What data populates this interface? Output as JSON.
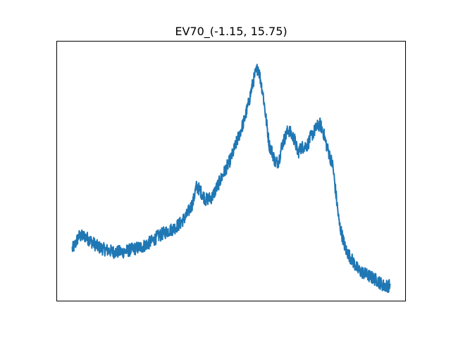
{
  "chart_data": {
    "type": "line",
    "title": "EV70_(-1.15, 15.75)",
    "xlabel": "",
    "ylabel": "",
    "xticks_visible": false,
    "yticks_visible": false,
    "grid": false,
    "legend": "none",
    "xlim": [
      -0.05,
      1.05
    ],
    "ylim": [
      0.0,
      1.0
    ],
    "colors": {
      "series": "#1f77b4",
      "frame": "#000000",
      "background": "#ffffff"
    },
    "series": [
      {
        "noise_amplitude": 0.025,
        "x": [
          0.0,
          0.01,
          0.02,
          0.04,
          0.06,
          0.08,
          0.1,
          0.13,
          0.16,
          0.19,
          0.22,
          0.25,
          0.27,
          0.3,
          0.32,
          0.34,
          0.36,
          0.38,
          0.39,
          0.4,
          0.42,
          0.44,
          0.46,
          0.48,
          0.5,
          0.52,
          0.54,
          0.555,
          0.565,
          0.575,
          0.585,
          0.6,
          0.62,
          0.63,
          0.64,
          0.65,
          0.66,
          0.68,
          0.7,
          0.71,
          0.72,
          0.74,
          0.75,
          0.77,
          0.78,
          0.79,
          0.8,
          0.82,
          0.84,
          0.86,
          0.88,
          0.9,
          0.93,
          0.96,
          0.98,
          1.0
        ],
        "y": [
          0.2,
          0.22,
          0.25,
          0.25,
          0.23,
          0.21,
          0.2,
          0.19,
          0.19,
          0.2,
          0.21,
          0.23,
          0.25,
          0.27,
          0.28,
          0.3,
          0.33,
          0.38,
          0.44,
          0.43,
          0.39,
          0.4,
          0.45,
          0.5,
          0.55,
          0.62,
          0.69,
          0.76,
          0.82,
          0.87,
          0.9,
          0.8,
          0.6,
          0.57,
          0.53,
          0.54,
          0.6,
          0.66,
          0.62,
          0.57,
          0.59,
          0.6,
          0.63,
          0.67,
          0.68,
          0.65,
          0.6,
          0.52,
          0.3,
          0.2,
          0.16,
          0.12,
          0.1,
          0.08,
          0.06,
          0.06
        ]
      }
    ]
  }
}
